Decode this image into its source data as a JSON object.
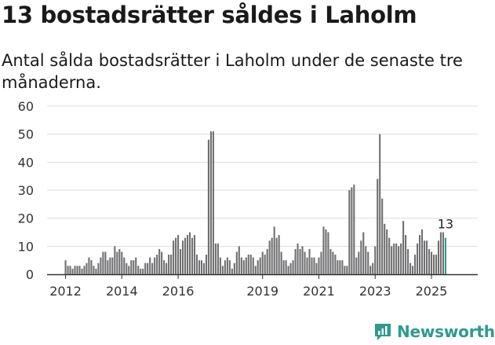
{
  "header": {
    "title": "13 bostadsrätter såldes i Laholm",
    "subtitle": "Antal sålda bostadsrätter i Laholm under de senaste tre månaderna."
  },
  "branding": {
    "name": "Newsworthy",
    "icon": "newsworthy-logo-icon",
    "color": "#2f9a8e"
  },
  "colors": {
    "bar": "#707072",
    "highlight": "#2f9a8e",
    "grid": "#dddddd",
    "axis": "#333333"
  },
  "chart_data": {
    "type": "bar",
    "title": "13 bostadsrätter såldes i Laholm",
    "subtitle": "Antal sålda bostadsrätter i Laholm under de senaste tre månaderna.",
    "xlabel": "",
    "ylabel": "",
    "ylim": [
      0,
      60
    ],
    "yticks": [
      0,
      10,
      20,
      30,
      40,
      50,
      60
    ],
    "xticks": [
      {
        "label": "2012",
        "year": 2012
      },
      {
        "label": "2014",
        "year": 2014
      },
      {
        "label": "2016",
        "year": 2016
      },
      {
        "label": "2019",
        "year": 2019
      },
      {
        "label": "2021",
        "year": 2021
      },
      {
        "label": "2023",
        "year": 2023
      },
      {
        "label": "2025",
        "year": 2025
      }
    ],
    "start_year": 2012,
    "start_month": 1,
    "grid": true,
    "annotation": {
      "text": "13",
      "target": "last"
    },
    "values": [
      5,
      3,
      3,
      2,
      3,
      3,
      3,
      2,
      3,
      4,
      6,
      5,
      3,
      2,
      4,
      6,
      8,
      8,
      5,
      6,
      6,
      10,
      8,
      9,
      8,
      6,
      4,
      3,
      5,
      5,
      6,
      3,
      2,
      2,
      4,
      4,
      6,
      4,
      6,
      7,
      9,
      8,
      5,
      4,
      7,
      7,
      12,
      13,
      14,
      9,
      12,
      13,
      14,
      15,
      13,
      14,
      7,
      5,
      5,
      4,
      7,
      48,
      51,
      51,
      11,
      11,
      6,
      3,
      5,
      6,
      5,
      2,
      4,
      8,
      10,
      6,
      5,
      6,
      7,
      7,
      6,
      3,
      5,
      6,
      8,
      7,
      9,
      12,
      13,
      17,
      13,
      14,
      8,
      5,
      5,
      3,
      4,
      5,
      9,
      11,
      9,
      10,
      8,
      6,
      9,
      6,
      6,
      4,
      6,
      8,
      17,
      16,
      15,
      9,
      8,
      7,
      5,
      5,
      5,
      3,
      3,
      30,
      31,
      32,
      6,
      8,
      12,
      15,
      10,
      8,
      3,
      4,
      10,
      34,
      50,
      27,
      18,
      16,
      13,
      10,
      11,
      11,
      10,
      11,
      19,
      14,
      9,
      4,
      3,
      7,
      11,
      14,
      16,
      12,
      12,
      9,
      8,
      7,
      7,
      12,
      15,
      15,
      13
    ]
  }
}
